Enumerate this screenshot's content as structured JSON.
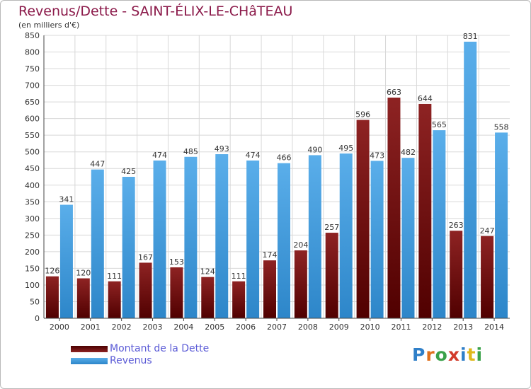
{
  "header": {
    "title": "Revenus/Dette - SAINT-ÉLIX-LE-CHâTEAU",
    "subtitle": "(en milliers d'€)"
  },
  "legend": {
    "debt_label": "Montant de la Dette",
    "revenue_label": "Revenus"
  },
  "logo": {
    "text": "Proxiti"
  },
  "colors": {
    "debt": "#7a1212",
    "revenue": "#3a9be0",
    "title": "#8b1a4a",
    "axis": "#444444",
    "grid": "#d8d8d8",
    "legend_text": "#5a5ad6"
  },
  "chart_data": {
    "type": "bar",
    "title": "Revenus/Dette - SAINT-ÉLIX-LE-CHâTEAU",
    "ylabel": "(en milliers d'€)",
    "xlabel": "",
    "categories": [
      "2000",
      "2001",
      "2002",
      "2003",
      "2004",
      "2005",
      "2006",
      "2007",
      "2008",
      "2009",
      "2010",
      "2011",
      "2012",
      "2013",
      "2014"
    ],
    "series": [
      {
        "name": "Montant de la Dette",
        "values": [
          126,
          120,
          111,
          167,
          153,
          124,
          111,
          174,
          204,
          257,
          596,
          663,
          644,
          263,
          247
        ]
      },
      {
        "name": "Revenus",
        "values": [
          341,
          447,
          425,
          474,
          485,
          493,
          474,
          466,
          490,
          495,
          473,
          482,
          565,
          831,
          558
        ]
      }
    ],
    "ylim": [
      0,
      850
    ],
    "yticks": [
      0,
      50,
      100,
      150,
      200,
      250,
      300,
      350,
      400,
      450,
      500,
      550,
      600,
      650,
      700,
      750,
      800,
      850
    ],
    "grid": true,
    "legend_position": "bottom-left"
  }
}
